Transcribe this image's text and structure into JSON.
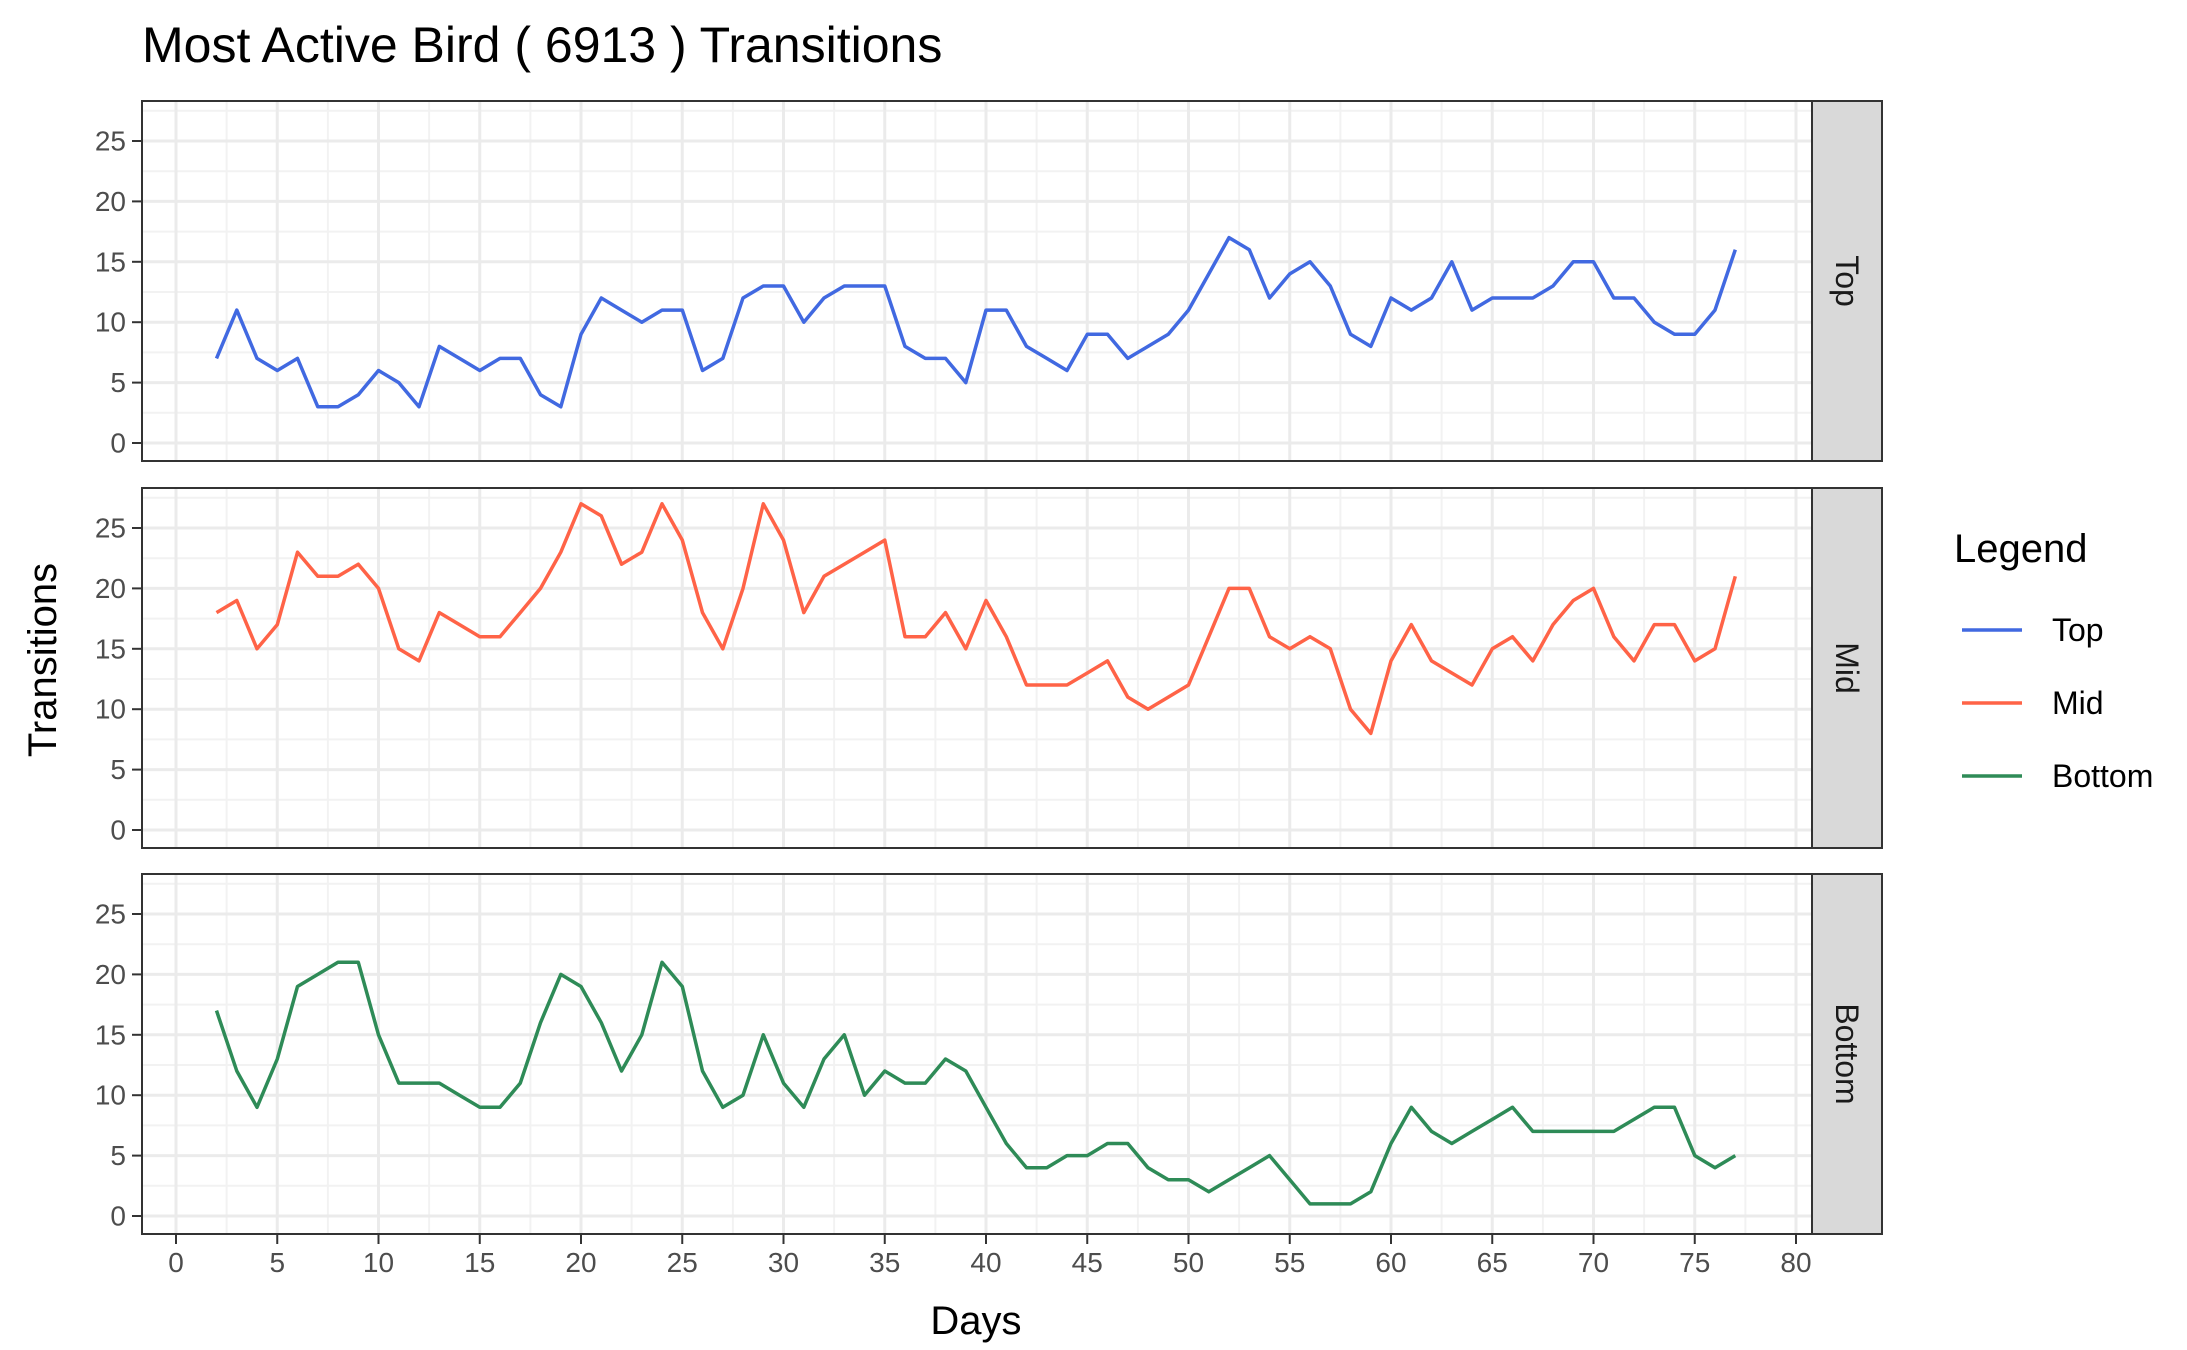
{
  "chart_data": {
    "type": "line",
    "title": "Most Active Bird ( 6913 ) Transitions",
    "xlabel": "Days",
    "ylabel": "Transitions",
    "xlim": [
      0,
      80
    ],
    "ylim": [
      0,
      28
    ],
    "x_ticks": [
      0,
      5,
      10,
      15,
      20,
      25,
      30,
      35,
      40,
      45,
      50,
      55,
      60,
      65,
      70,
      75,
      80
    ],
    "y_ticks": [
      0,
      5,
      10,
      15,
      20,
      25
    ],
    "grid": true,
    "legend": {
      "title": "Legend",
      "position": "right"
    },
    "x": [
      2,
      3,
      4,
      5,
      6,
      7,
      8,
      9,
      10,
      11,
      12,
      13,
      14,
      15,
      16,
      17,
      18,
      19,
      20,
      21,
      22,
      23,
      24,
      25,
      26,
      27,
      28,
      29,
      30,
      31,
      32,
      33,
      34,
      35,
      36,
      37,
      38,
      39,
      40,
      41,
      42,
      43,
      44,
      45,
      46,
      47,
      48,
      49,
      50,
      51,
      52,
      53,
      54,
      55,
      56,
      57,
      58,
      59,
      60,
      61,
      62,
      63,
      64,
      65,
      66,
      67,
      68,
      69,
      70,
      71,
      72,
      73,
      74,
      75,
      76,
      77
    ],
    "series": [
      {
        "name": "Top",
        "color": "#4169E1",
        "values": [
          7,
          11,
          7,
          6,
          7,
          3,
          3,
          4,
          6,
          5,
          3,
          8,
          7,
          6,
          7,
          7,
          4,
          3,
          9,
          12,
          11,
          10,
          11,
          11,
          6,
          7,
          12,
          13,
          13,
          10,
          12,
          13,
          13,
          13,
          8,
          7,
          7,
          5,
          11,
          11,
          8,
          7,
          6,
          9,
          9,
          7,
          8,
          9,
          11,
          14,
          17,
          16,
          12,
          14,
          15,
          13,
          9,
          8,
          12,
          11,
          12,
          15,
          11,
          12,
          12,
          12,
          13,
          15,
          15,
          12,
          12,
          10,
          9,
          9,
          11,
          16
        ]
      },
      {
        "name": "Mid",
        "color": "#FF6347",
        "values": [
          18,
          19,
          15,
          17,
          23,
          21,
          21,
          22,
          20,
          15,
          14,
          18,
          17,
          16,
          16,
          18,
          20,
          23,
          27,
          26,
          22,
          23,
          27,
          24,
          18,
          15,
          20,
          27,
          24,
          18,
          21,
          22,
          23,
          24,
          16,
          16,
          18,
          15,
          19,
          16,
          12,
          12,
          12,
          13,
          14,
          11,
          10,
          11,
          12,
          16,
          20,
          20,
          16,
          15,
          16,
          15,
          10,
          8,
          14,
          17,
          14,
          13,
          12,
          15,
          16,
          14,
          17,
          19,
          20,
          16,
          14,
          17,
          17,
          14,
          15,
          21
        ]
      },
      {
        "name": "Bottom",
        "color": "#2E8B57",
        "values": [
          17,
          12,
          9,
          13,
          19,
          20,
          21,
          21,
          15,
          11,
          11,
          11,
          10,
          9,
          9,
          11,
          16,
          20,
          19,
          16,
          12,
          15,
          21,
          19,
          12,
          9,
          10,
          15,
          11,
          9,
          13,
          15,
          10,
          12,
          11,
          11,
          13,
          12,
          9,
          6,
          4,
          4,
          5,
          5,
          6,
          6,
          4,
          3,
          3,
          2,
          3,
          4,
          5,
          3,
          1,
          1,
          1,
          2,
          6,
          9,
          7,
          6,
          7,
          8,
          9,
          7,
          7,
          7,
          7,
          7,
          8,
          9,
          9,
          5,
          4,
          5
        ]
      }
    ]
  }
}
